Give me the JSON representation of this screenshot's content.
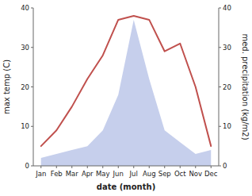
{
  "chart_data": {
    "type": "line",
    "xlabel": "date (month)",
    "ylabel": "max temp (C)",
    "y2label": "med. precipitation (kg/m2)",
    "categories": [
      "Jan",
      "Feb",
      "Mar",
      "Apr",
      "May",
      "Jun",
      "Jul",
      "Aug",
      "Sep",
      "Oct",
      "Nov",
      "Dec"
    ],
    "series": [
      {
        "type": "area",
        "axis": "y2",
        "color": "#c6cfec",
        "values": [
          2,
          3,
          4,
          5,
          9,
          18,
          37,
          22,
          9,
          6,
          3,
          4
        ]
      },
      {
        "type": "line",
        "color": "#c0504d",
        "values": [
          5,
          9,
          15,
          22,
          28,
          37,
          38,
          37,
          29,
          31,
          20,
          5
        ]
      }
    ],
    "ylim": [
      0,
      40
    ],
    "yticks": [
      0,
      10,
      20,
      30,
      40
    ],
    "y2lim": [
      0,
      40
    ],
    "y2ticks": [
      0,
      10,
      20,
      30,
      40
    ],
    "grid": false
  }
}
